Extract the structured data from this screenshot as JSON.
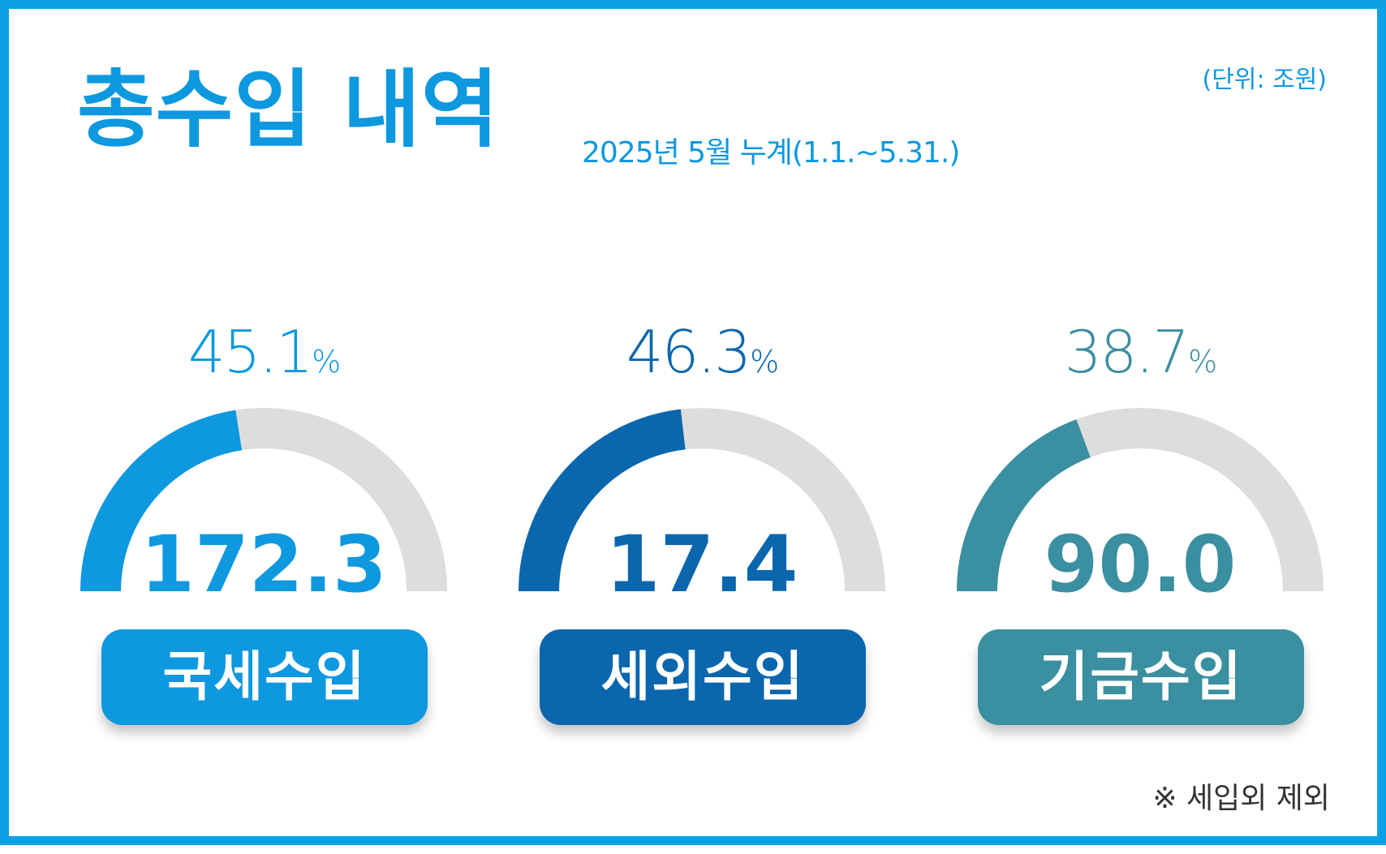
{
  "title": "총수입 내역",
  "subtitle": "2025년 5월 누계(1.1.~5.31.)",
  "unit": "(단위: 조원)",
  "footnote": "※ 세입외 제외",
  "colors": {
    "frame": "#0ea0e5",
    "track": "#dcdddd"
  },
  "chart_data": {
    "type": "gauge",
    "unit": "조원",
    "items": [
      {
        "label": "국세수입",
        "value": 172.3,
        "value_text": "172.3",
        "percent": 45.1,
        "percent_text": "45.1",
        "pct_sign": "%",
        "color": "#0d98e0"
      },
      {
        "label": "세외수입",
        "value": 17.4,
        "value_text": "17.4",
        "percent": 46.3,
        "percent_text": "46.3",
        "pct_sign": "%",
        "color": "#0a66ad"
      },
      {
        "label": "기금수입",
        "value": 90.0,
        "value_text": "90.0",
        "percent": 38.7,
        "percent_text": "38.7",
        "pct_sign": "%",
        "color": "#3a8fa0"
      }
    ]
  }
}
